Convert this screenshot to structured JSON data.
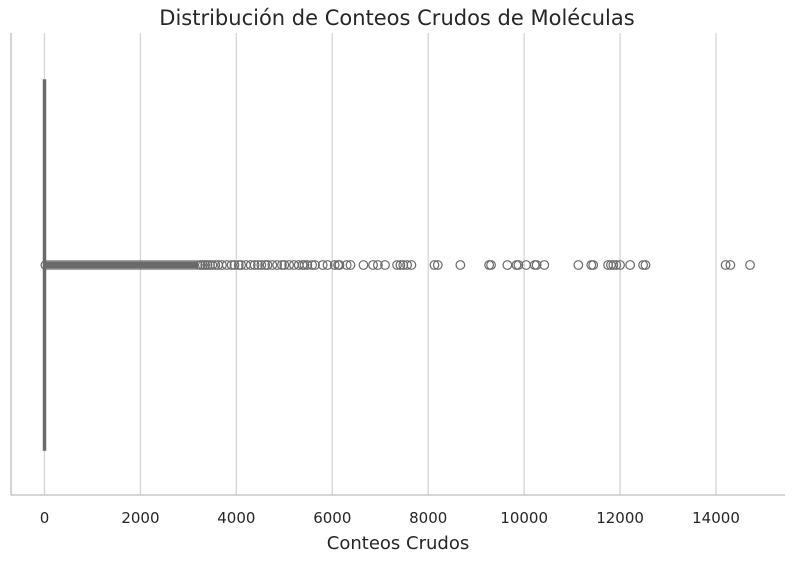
{
  "chart_data": {
    "type": "boxplot",
    "orientation": "horizontal",
    "title": "Distribución de Conteos Crudos de Moléculas",
    "xlabel": "Conteos Crudos",
    "ylabel": "",
    "xlim": [
      -700,
      15400
    ],
    "xticks": [
      0,
      2000,
      4000,
      6000,
      8000,
      10000,
      12000,
      14000
    ],
    "xtick_labels": [
      "0",
      "2000",
      "4000",
      "6000",
      "8000",
      "10000",
      "12000",
      "14000"
    ],
    "grid": "vertical",
    "legend": "none",
    "colors": {
      "box": "#6a6a6a",
      "outlier_edge": "#6a6a6a",
      "grid": "#d5d5d5",
      "spine": "#c8c8c8"
    },
    "box": {
      "min": 0,
      "q1": 0,
      "median": 0,
      "q3": 5,
      "whisker_high": 12
    },
    "dense_outlier_range": [
      12,
      3200
    ],
    "outliers": [
      3250,
      3300,
      3350,
      3400,
      3450,
      3500,
      3560,
      3620,
      3700,
      3800,
      3900,
      3960,
      4050,
      4100,
      4200,
      4300,
      4380,
      4450,
      4520,
      4600,
      4650,
      4750,
      4850,
      4950,
      5000,
      5100,
      5200,
      5300,
      5380,
      5420,
      5480,
      5580,
      5640,
      5800,
      5900,
      6050,
      6120,
      6150,
      6300,
      6380,
      6650,
      6850,
      6950,
      7100,
      7350,
      7420,
      7480,
      7560,
      7650,
      8130,
      8200,
      8670,
      9270,
      9310,
      9650,
      9840,
      9880,
      10040,
      10220,
      10260,
      10420,
      11130,
      11400,
      11440,
      11750,
      11810,
      11860,
      11920,
      12000,
      12210,
      12480,
      12530,
      14200,
      14300,
      14710
    ]
  }
}
